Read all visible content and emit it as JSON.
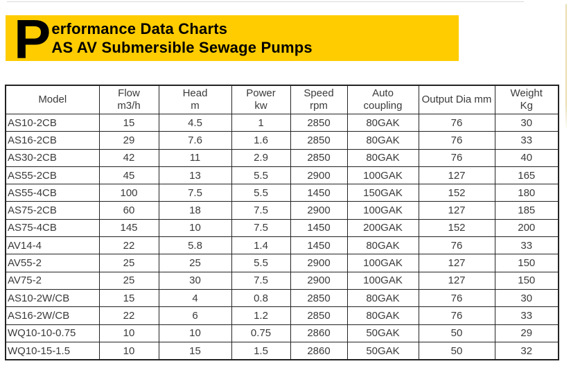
{
  "banner": {
    "drop_cap": "P",
    "title_rest": "erformance Data Charts",
    "subtitle": "AS AV Submersible Sewage Pumps"
  },
  "table": {
    "columns": [
      {
        "label": "Model",
        "sub": ""
      },
      {
        "label": "Flow",
        "sub": "m3/h"
      },
      {
        "label": "Head",
        "sub": "m"
      },
      {
        "label": "Power",
        "sub": "kw"
      },
      {
        "label": "Speed",
        "sub": "rpm"
      },
      {
        "label": "Auto",
        "sub": "coupling"
      },
      {
        "label": "Output Dia mm",
        "sub": ""
      },
      {
        "label": "Weight",
        "sub": "Kg"
      }
    ],
    "rows": [
      [
        "AS10-2CB",
        "15",
        "4.5",
        "1",
        "2850",
        "80GAK",
        "76",
        "30"
      ],
      [
        "AS16-2CB",
        "29",
        "7.6",
        "1.6",
        "2850",
        "80GAK",
        "76",
        "33"
      ],
      [
        "AS30-2CB",
        "42",
        "11",
        "2.9",
        "2850",
        "80GAK",
        "76",
        "40"
      ],
      [
        "AS55-2CB",
        "45",
        "13",
        "5.5",
        "2900",
        "100GAK",
        "127",
        "165"
      ],
      [
        "AS55-4CB",
        "100",
        "7.5",
        "5.5",
        "1450",
        "150GAK",
        "152",
        "180"
      ],
      [
        "AS75-2CB",
        "60",
        "18",
        "7.5",
        "2900",
        "100GAK",
        "127",
        "185"
      ],
      [
        "AS75-4CB",
        "145",
        "10",
        "7.5",
        "1450",
        "200GAK",
        "152",
        "200"
      ],
      [
        "AV14-4",
        "22",
        "5.8",
        "1.4",
        "1450",
        "80GAK",
        "76",
        "33"
      ],
      [
        "AV55-2",
        "25",
        "25",
        "5.5",
        "2900",
        "100GAK",
        "127",
        "150"
      ],
      [
        "AV75-2",
        "25",
        "30",
        "7.5",
        "2900",
        "100GAK",
        "127",
        "150"
      ],
      [
        "AS10-2W/CB",
        "15",
        "4",
        "0.8",
        "2850",
        "80GAK",
        "76",
        "30"
      ],
      [
        "AS16-2W/CB",
        "22",
        "6",
        "1.2",
        "2850",
        "80GAK",
        "76",
        "33"
      ],
      [
        "WQ10-10-0.75",
        "10",
        "10",
        "0.75",
        "2860",
        "50GAK",
        "50",
        "29"
      ],
      [
        "WQ10-15-1.5",
        "10",
        "15",
        "1.5",
        "2860",
        "50GAK",
        "50",
        "32"
      ]
    ]
  },
  "colors": {
    "banner_bg": "#FFCC00",
    "grid": "#222222",
    "text": "#3A3A3A",
    "decor_line": "#E8DCAE"
  }
}
